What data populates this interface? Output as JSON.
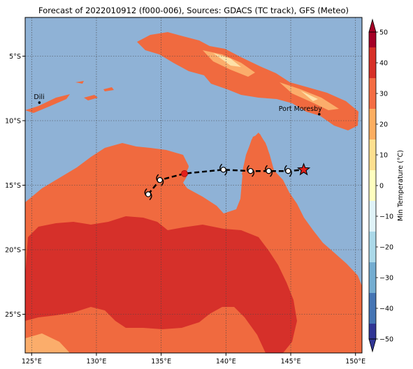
{
  "title": "Forecast of 2022010912 (f000-006), Sources: GDACS (TC track), GFS (Meteo)",
  "map": {
    "lon_range": [
      124.5,
      150.5
    ],
    "lat_range": [
      -28,
      -2
    ],
    "x_ticks": [
      {
        "value": 125,
        "label": "125°E"
      },
      {
        "value": 130,
        "label": "130°E"
      },
      {
        "value": 135,
        "label": "135°E"
      },
      {
        "value": 140,
        "label": "140°E"
      },
      {
        "value": 145,
        "label": "145°E"
      },
      {
        "value": 150,
        "label": "150°E"
      }
    ],
    "y_ticks": [
      {
        "value": -5,
        "label": "5°S"
      },
      {
        "value": -10,
        "label": "10°S"
      },
      {
        "value": -15,
        "label": "15°S"
      },
      {
        "value": -20,
        "label": "20°S"
      },
      {
        "value": -25,
        "label": "25°S"
      }
    ],
    "grid": true,
    "places": [
      {
        "name": "Dili",
        "lon": 125.6,
        "lat": -8.6
      },
      {
        "name": "Port Moresby",
        "lon": 147.2,
        "lat": -9.5
      }
    ],
    "colors": {
      "ocean": "#8fb2d6",
      "land_20_30": "#f06a3f",
      "land_30_40": "#d6302a",
      "land_10_20": "#fbad6b",
      "land_0_10": "#fde1a7"
    }
  },
  "track": {
    "past_positions": [
      {
        "lon": 134.0,
        "lat": -15.7
      },
      {
        "lon": 134.9,
        "lat": -14.6
      }
    ],
    "current_position": {
      "lon": 136.8,
      "lat": -14.1
    },
    "forecast_positions": [
      {
        "lon": 139.8,
        "lat": -13.8
      },
      {
        "lon": 141.9,
        "lat": -13.9
      },
      {
        "lon": 143.3,
        "lat": -13.9
      },
      {
        "lon": 144.8,
        "lat": -13.9
      }
    ],
    "end_marker": {
      "lon": 146.0,
      "lat": -13.8
    }
  },
  "colorbar": {
    "label": "Min Temperature (°C)",
    "ticks": [
      "50",
      "40",
      "30",
      "20",
      "10",
      "0",
      "−10",
      "−20",
      "−30",
      "−40",
      "−50"
    ],
    "colors": [
      "#a50026",
      "#d73027",
      "#f46d43",
      "#fdae61",
      "#fee090",
      "#ffffbf",
      "#e0f3f8",
      "#abd9e9",
      "#74add1",
      "#4575b4",
      "#313695"
    ],
    "min": -50,
    "max": 50
  }
}
